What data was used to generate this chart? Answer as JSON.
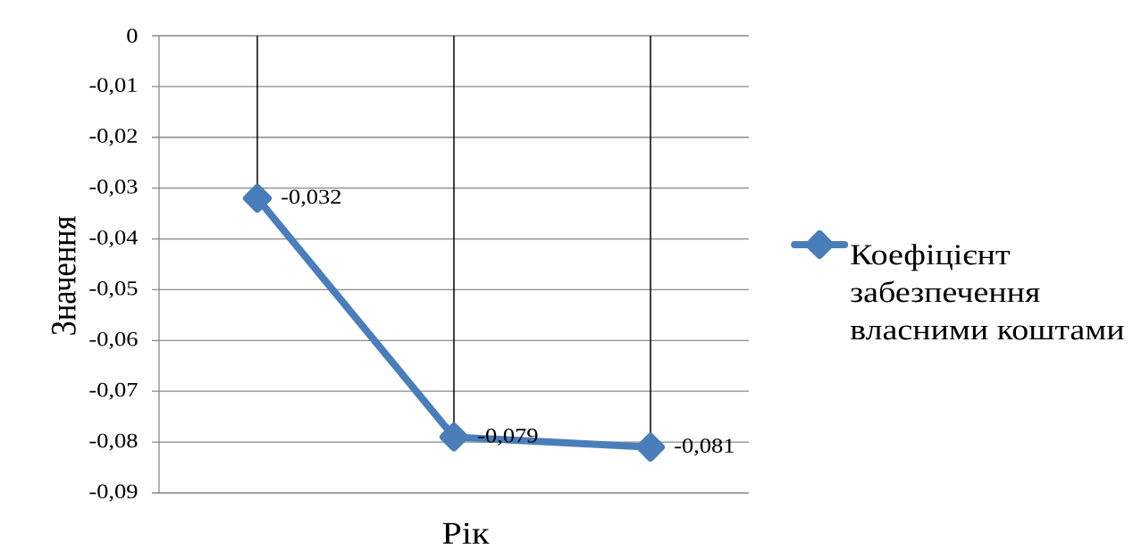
{
  "chart_data": {
    "type": "line",
    "xlabel": "Рік",
    "ylabel": "Значення",
    "categories": [
      null,
      null,
      null
    ],
    "series": [
      {
        "name": "Коефіцієнт забезпечення власними коштами",
        "color": "#4a7ebb",
        "values": [
          -0.032,
          -0.079,
          -0.081
        ],
        "value_labels": [
          "-0,032",
          "-0,079",
          "-0,081"
        ]
      }
    ],
    "ylim": [
      -0.09,
      0
    ],
    "yticks": [
      0,
      {
        "value": -0.01,
        "label": "-0,01"
      },
      {
        "value": -0.02,
        "label": "-0,02"
      },
      {
        "value": -0.03,
        "label": "-0,03"
      },
      {
        "value": -0.04,
        "label": "-0,04"
      },
      {
        "value": -0.05,
        "label": "-0,05"
      },
      {
        "value": -0.06,
        "label": "-0,06"
      },
      {
        "value": -0.07,
        "label": "-0,07"
      },
      {
        "value": -0.08,
        "label": "-0,08"
      },
      {
        "value": -0.09,
        "label": "-0,09"
      }
    ],
    "grid": "y",
    "legend": "right",
    "marker": "diamond",
    "line_style": "solid"
  }
}
